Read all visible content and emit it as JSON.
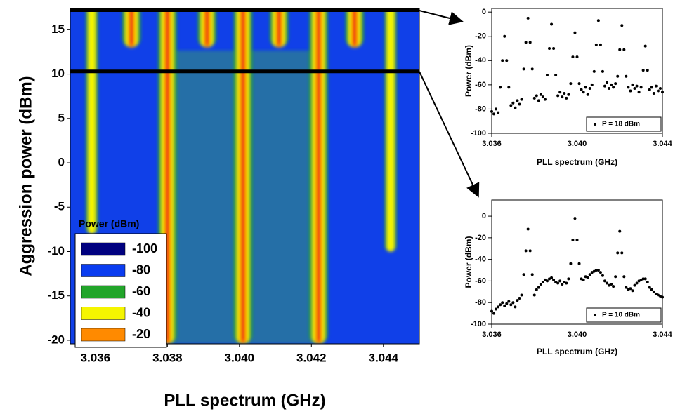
{
  "chart_data": [
    {
      "type": "heatmap",
      "xlabel": "PLL spectrum (GHz)",
      "ylabel": "Aggression power (dBm)",
      "xlim": [
        3.0353,
        3.045
      ],
      "ylim": [
        -20.4,
        17.4
      ],
      "xticks": [
        3.036,
        3.038,
        {
          "value": 3.04,
          "label": "3.040"
        },
        3.042,
        3.044
      ],
      "yticks": [
        -20,
        -15,
        -10,
        -5,
        0,
        5,
        10,
        15
      ],
      "colorbar": {
        "title": "Power (dBm)",
        "levels": [
          -100,
          -80,
          -60,
          -40,
          -20
        ],
        "colors": [
          "#00007f",
          "#0a3cf0",
          "#22a52a",
          "#f5f500",
          "#ff8a00"
        ]
      },
      "x": [
        3.0359,
        3.037,
        3.038,
        3.0391,
        3.0401,
        3.0411,
        3.0422,
        3.0432,
        3.0442
      ],
      "y_start": [
        -8,
        13,
        -20.4,
        13,
        -20.4,
        13,
        -20.4,
        13,
        -10
      ],
      "values": [
        -40,
        -20,
        -20,
        -20,
        -20,
        -20,
        -30,
        -20,
        -40
      ],
      "hlines": [
        17.2,
        10.3
      ]
    },
    {
      "type": "scatter",
      "xlabel": "PLL spectrum (GHz)",
      "ylabel": "Power (dBm)",
      "xlim": [
        3.036,
        3.044
      ],
      "ylim": [
        -100,
        3
      ],
      "xticks": [
        3.036,
        {
          "value": 3.04,
          "label": "3.040"
        },
        3.044
      ],
      "yticks": [
        -100,
        -80,
        -60,
        -40,
        -20,
        0
      ],
      "x": [
        3.036,
        3.0361,
        3.0362,
        3.0363,
        3.0364,
        3.0365,
        3.0366,
        3.0367,
        3.0368,
        3.0369,
        3.037,
        3.0371,
        3.0372,
        3.0373,
        3.0374,
        3.0375,
        3.0376,
        3.0377,
        3.0378,
        3.0379,
        3.038,
        3.0381,
        3.0382,
        3.0383,
        3.0384,
        3.0385,
        3.0386,
        3.0387,
        3.0388,
        3.0389,
        3.039,
        3.0391,
        3.0392,
        3.0393,
        3.0394,
        3.0395,
        3.0396,
        3.0397,
        3.0398,
        3.0399,
        3.04,
        3.0401,
        3.0402,
        3.0403,
        3.0404,
        3.0405,
        3.0406,
        3.0407,
        3.0408,
        3.0409,
        3.041,
        3.0411,
        3.0412,
        3.0413,
        3.0414,
        3.0415,
        3.0416,
        3.0417,
        3.0418,
        3.0419,
        3.042,
        3.0421,
        3.0422,
        3.0423,
        3.0424,
        3.0425,
        3.0426,
        3.0427,
        3.0428,
        3.0429,
        3.043,
        3.0431,
        3.0432,
        3.0433,
        3.0434,
        3.0435,
        3.0436,
        3.0437,
        3.0438,
        3.0439,
        3.044
      ],
      "series": [
        {
          "name": "P = 18 dBm",
          "color": "#000000",
          "values": [
            -82,
            -84,
            -80,
            -83,
            -62,
            -40,
            -20,
            -40,
            -62,
            -77,
            -75,
            -79,
            -73,
            -76,
            -72,
            -47,
            -25,
            -5,
            -25,
            -47,
            -71,
            -69,
            -73,
            -68,
            -70,
            -72,
            -52,
            -30,
            -10,
            -30,
            -52,
            -69,
            -66,
            -70,
            -67,
            -71,
            -68,
            -59,
            -37,
            -17,
            -37,
            -59,
            -64,
            -66,
            -62,
            -68,
            -63,
            -60,
            -49,
            -27,
            -7,
            -27,
            -49,
            -61,
            -58,
            -63,
            -60,
            -62,
            -59,
            -53,
            -31,
            -11,
            -31,
            -53,
            -62,
            -65,
            -60,
            -63,
            -61,
            -66,
            -62,
            -48,
            -28,
            -48,
            -64,
            -62,
            -67,
            -61,
            -65,
            -63,
            -66
          ]
        }
      ]
    },
    {
      "type": "scatter",
      "xlabel": "PLL spectrum (GHz)",
      "ylabel": "Power (dBm)",
      "xlim": [
        3.036,
        3.044
      ],
      "ylim": [
        -100,
        15
      ],
      "xticks": [
        3.036,
        {
          "value": 3.04,
          "label": "3.040"
        },
        3.044
      ],
      "yticks": [
        -100,
        -80,
        -60,
        -40,
        -20,
        0
      ],
      "x": [
        3.036,
        3.0361,
        3.0362,
        3.0363,
        3.0364,
        3.0365,
        3.0366,
        3.0367,
        3.0368,
        3.0369,
        3.037,
        3.0371,
        3.0372,
        3.0373,
        3.0374,
        3.0375,
        3.0376,
        3.0377,
        3.0378,
        3.0379,
        3.038,
        3.0381,
        3.0382,
        3.0383,
        3.0384,
        3.0385,
        3.0386,
        3.0387,
        3.0388,
        3.0389,
        3.039,
        3.0391,
        3.0392,
        3.0393,
        3.0394,
        3.0395,
        3.0396,
        3.0397,
        3.0398,
        3.0399,
        3.04,
        3.0401,
        3.0402,
        3.0403,
        3.0404,
        3.0405,
        3.0406,
        3.0407,
        3.0408,
        3.0409,
        3.041,
        3.0411,
        3.0412,
        3.0413,
        3.0414,
        3.0415,
        3.0416,
        3.0417,
        3.0418,
        3.0419,
        3.042,
        3.0421,
        3.0422,
        3.0423,
        3.0424,
        3.0425,
        3.0426,
        3.0427,
        3.0428,
        3.0429,
        3.043,
        3.0431,
        3.0432,
        3.0433,
        3.0434,
        3.0435,
        3.0436,
        3.0437,
        3.0438,
        3.0439,
        3.044
      ],
      "series": [
        {
          "name": "P = 10 dBm",
          "color": "#000000",
          "values": [
            -88,
            -90,
            -86,
            -84,
            -82,
            -80,
            -83,
            -81,
            -79,
            -82,
            -80,
            -84,
            -78,
            -76,
            -73,
            -54,
            -32,
            -12,
            -32,
            -54,
            -73,
            -68,
            -66,
            -63,
            -61,
            -59,
            -60,
            -58,
            -57,
            -59,
            -61,
            -62,
            -60,
            -63,
            -61,
            -62,
            -58,
            -44,
            -22,
            -2,
            -22,
            -44,
            -58,
            -59,
            -56,
            -57,
            -54,
            -52,
            -51,
            -50,
            -50,
            -52,
            -55,
            -60,
            -62,
            -64,
            -63,
            -65,
            -56,
            -34,
            -14,
            -34,
            -56,
            -66,
            -68,
            -67,
            -69,
            -64,
            -62,
            -60,
            -59,
            -58,
            -58,
            -61,
            -66,
            -68,
            -70,
            -72,
            -73,
            -74,
            -75
          ]
        }
      ]
    }
  ]
}
